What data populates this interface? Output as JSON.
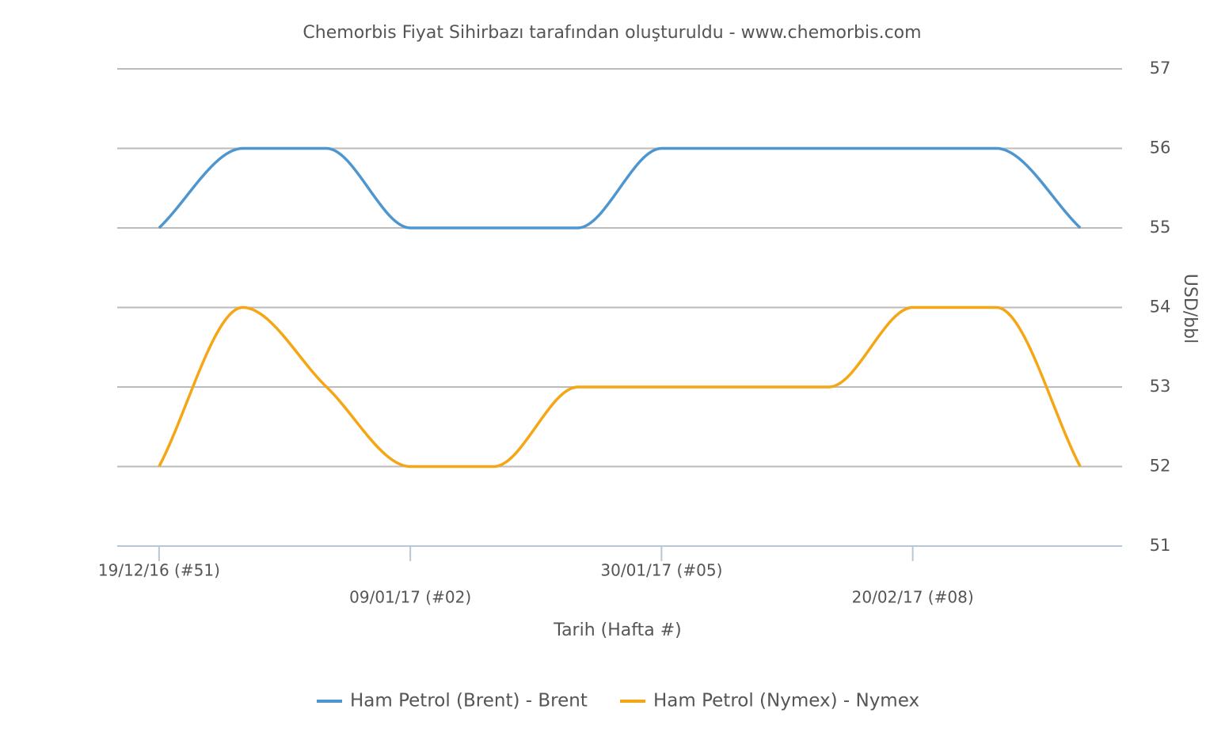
{
  "chart_data": {
    "type": "line",
    "title": "Chemorbis Fiyat Sihirbazı tarafından oluşturuldu - www.chemorbis.com",
    "x_label": "Tarih (Hafta #)",
    "y_label": "USD/bbl",
    "categories": [
      "19/12/16 (#51)",
      null,
      null,
      "09/01/17 (#02)",
      null,
      null,
      "30/01/17 (#05)",
      null,
      null,
      "20/02/17 (#08)",
      null,
      null
    ],
    "series": [
      {
        "name": "Ham Petrol (Brent) - Brent",
        "color": "#4f96cf",
        "values": [
          55,
          56,
          56,
          55,
          55,
          55,
          56,
          56,
          56,
          56,
          56,
          55
        ]
      },
      {
        "name": "Ham Petrol (Nymex) - Nymex",
        "color": "#f5a614",
        "values": [
          52,
          54,
          53,
          52,
          52,
          53,
          53,
          53,
          53,
          54,
          54,
          52
        ]
      }
    ],
    "ylim": [
      51,
      57
    ],
    "yticks": [
      51,
      52,
      53,
      54,
      55,
      56,
      57
    ],
    "grid": true,
    "y_axis_side": "right",
    "legend": "bottom"
  }
}
